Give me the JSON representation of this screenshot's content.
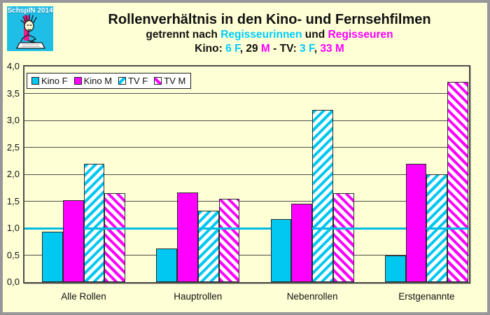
{
  "logo": {
    "text": "SchspIN 2014"
  },
  "title": {
    "line1": "Rollenverhältnis in den Kino- und Fernsehfilmen",
    "line2": {
      "p1": "getrennt nach ",
      "p2": "Regisseurinnen",
      "p3": " und ",
      "p4": "Regisseuren"
    },
    "line3": {
      "p1": "Kino: ",
      "p2": "6 F",
      "p3": ", 29 ",
      "p4": "M",
      "p5": " - TV: ",
      "p6": "3 F",
      "p7": ", ",
      "p8": "33 M"
    }
  },
  "colors": {
    "background": "#FFFFD6",
    "cyan": "#00C8F0",
    "magenta": "#FF00FF",
    "text_cyan": "#00CCFF",
    "text_magenta": "#FF00FF",
    "grid": "#4d4d4d",
    "reference_line": "#00BCE4",
    "outer_border": "#97979B",
    "logo_background": "#1FBEE7",
    "logo_stripe": "#EC1E8C"
  },
  "chart_data": {
    "type": "bar",
    "categories": [
      "Alle Rollen",
      "Hauptrollen",
      "Nebenrollen",
      "Erstgenannte"
    ],
    "series": [
      {
        "name": "Kino F",
        "pattern": "solid",
        "color": "cyan",
        "values": [
          0.93,
          0.62,
          1.17,
          0.5
        ]
      },
      {
        "name": "Kino M",
        "pattern": "solid",
        "color": "magenta",
        "values": [
          1.52,
          1.66,
          1.46,
          2.2
        ]
      },
      {
        "name": "TV F",
        "pattern": "hatch",
        "color": "cyan",
        "values": [
          2.2,
          1.33,
          3.2,
          2.0
        ]
      },
      {
        "name": "TV M",
        "pattern": "hatch",
        "color": "magenta",
        "values": [
          1.65,
          1.54,
          1.65,
          3.72
        ]
      }
    ],
    "ylim": [
      0,
      4.0
    ],
    "ytick_step": 0.5,
    "ytick_labels": [
      "0,0",
      "0,5",
      "1,0",
      "1,5",
      "2,0",
      "2,5",
      "3,0",
      "3,5",
      "4,0"
    ],
    "reference_line": 1.0,
    "grid": true,
    "legend_position": "top-left",
    "title": "Rollenverhältnis in den Kino- und Fernsehfilmen",
    "xlabel": "",
    "ylabel": ""
  }
}
